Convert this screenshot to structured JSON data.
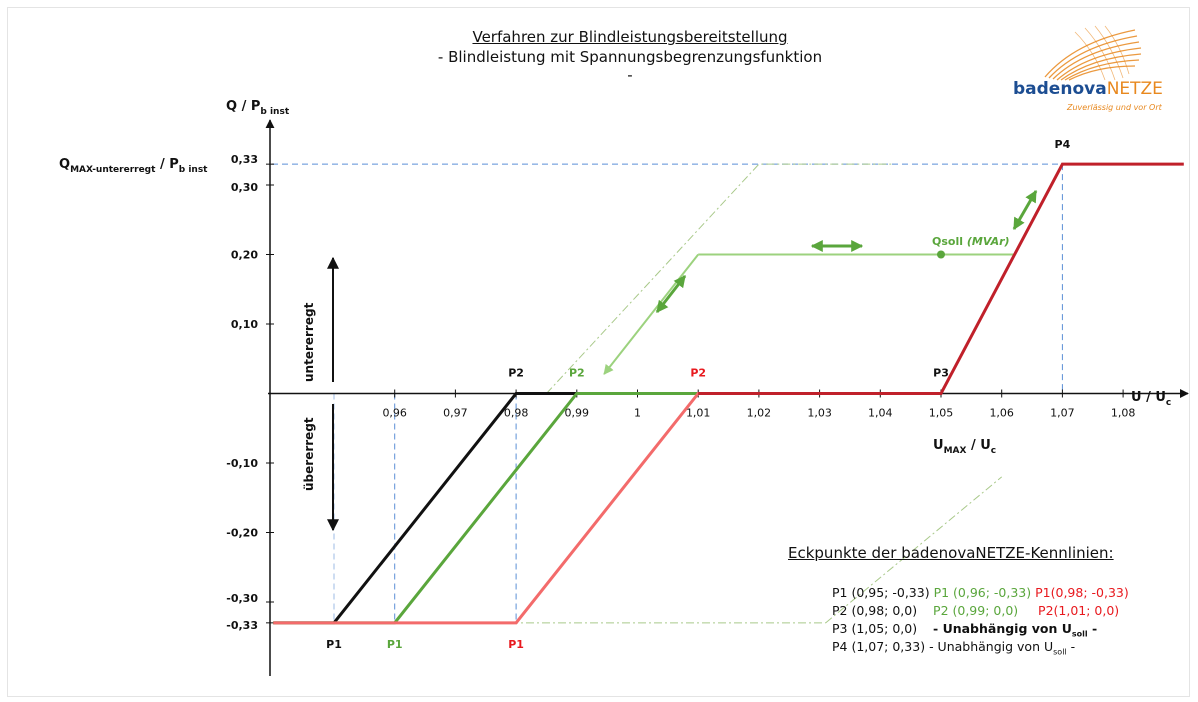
{
  "header": {
    "title_line1": "Verfahren zur Blindleistungsbereitstellung",
    "title_line2": "- Blindleistung mit Spannungsbegrenzungsfunktion",
    "title_line3": "-"
  },
  "logo": {
    "name_part1": "badenova",
    "name_part2": "NETZE",
    "tagline": "Zuverlässig und vor Ort",
    "colors": {
      "blue": "#1c4d92",
      "orange": "#e8881e"
    }
  },
  "legend": {
    "title": "Eckpunkte der badenovaNETZE-Kennlinien:",
    "rows": [
      {
        "a": "P1 (0,95; -0,33)",
        "b": "P1 (0,96; -0,33)",
        "c": "P1(0,98; -0,33)"
      },
      {
        "a": "P2 (0,98; 0,0)",
        "b": "P2 (0,99; 0,0)",
        "c": "P2(1,01; 0,0)"
      },
      {
        "a": "P3 (1,05; 0,0)",
        "b": "- Unabhängig von U",
        "b_sub": "soll",
        "b_tail": " -"
      },
      {
        "a": "P4 (1,07; 0,33)",
        "b": "- Unabhängig von U",
        "b_sub": "soll",
        "b_tail": " -"
      }
    ]
  },
  "chart_data": {
    "type": "line",
    "title": "Verfahren zur Blindleistungsbereitstellung",
    "xlabel": "U / Uc",
    "xlabel_main": "U / U",
    "xlabel_sub": "c",
    "ylabel": "Q / Pb inst",
    "ylabel_main": "Q / P",
    "ylabel_sub": "b inst",
    "ylabel_qmax_main": "Q",
    "ylabel_qmax_sub": "MAX-untererregt",
    "ylabel_qmax_mid": " / P",
    "ylabel_qmax_sub2": "b inst",
    "umax_label_main": "U",
    "umax_label_sub": "MAX",
    "umax_label_tail": " / U",
    "umax_label_sub2": "c",
    "xlim": [
      0.94,
      1.09
    ],
    "ylim": [
      -0.4,
      0.37
    ],
    "x_ticks": [
      {
        "v": 0.96,
        "label": "0,96"
      },
      {
        "v": 0.97,
        "label": "0,97"
      },
      {
        "v": 0.98,
        "label": "0,98"
      },
      {
        "v": 0.99,
        "label": "0,99"
      },
      {
        "v": 1.0,
        "label": "1"
      },
      {
        "v": 1.01,
        "label": "1,01"
      },
      {
        "v": 1.02,
        "label": "1,02"
      },
      {
        "v": 1.03,
        "label": "1,03"
      },
      {
        "v": 1.04,
        "label": "1,04"
      },
      {
        "v": 1.05,
        "label": "1,05"
      },
      {
        "v": 1.06,
        "label": "1,06"
      },
      {
        "v": 1.07,
        "label": "1,07"
      },
      {
        "v": 1.08,
        "label": "1,08"
      }
    ],
    "y_ticks": [
      {
        "v": 0.33,
        "label": "0,33"
      },
      {
        "v": 0.3,
        "label": "0,30"
      },
      {
        "v": 0.2,
        "label": "0,20"
      },
      {
        "v": 0.1,
        "label": "0,10"
      },
      {
        "v": -0.1,
        "label": "-0,10"
      },
      {
        "v": -0.2,
        "label": "-0,20"
      },
      {
        "v": -0.3,
        "label": "-0,30"
      },
      {
        "v": -0.33,
        "label": "-0,33"
      }
    ],
    "series": [
      {
        "color": "#111111",
        "x": [
          0.94,
          0.95,
          0.98,
          1.05
        ],
        "y": [
          -0.33,
          -0.33,
          0.0,
          0.0
        ]
      },
      {
        "color": "#5aa63c",
        "x": [
          0.94,
          0.96,
          0.99,
          1.05
        ],
        "y": [
          -0.33,
          -0.33,
          0.0,
          0.0
        ]
      },
      {
        "color": "#f36b6b",
        "x": [
          0.94,
          0.98,
          1.01,
          1.05
        ],
        "y": [
          -0.33,
          -0.33,
          0.0,
          0.0
        ]
      },
      {
        "color": "#c0202a",
        "x": [
          1.01,
          1.05,
          1.07,
          1.09
        ],
        "y": [
          0.0,
          0.0,
          0.33,
          0.33
        ]
      }
    ],
    "qsoll_series": {
      "color": "#9cd27e",
      "x": [
        0.995,
        1.01,
        1.062
      ],
      "y": [
        0.03,
        0.2,
        0.2
      ]
    },
    "qsoll_point": {
      "x": 1.05,
      "y": 0.2,
      "label": "Qsoll",
      "label_unit": "(MVAr)"
    },
    "dashed_guides_x": [
      0.96,
      0.98,
      1.07
    ],
    "dashed_guides_y": [
      0.33,
      -0.33
    ],
    "dashdot_helper": {
      "x": [
        0.985,
        1.02,
        1.042
      ],
      "y": [
        0.0,
        0.33,
        0.33
      ]
    },
    "dashdot_helper_bottom": {
      "x": [
        0.95,
        1.031
      ],
      "y": [
        -0.33,
        -0.33
      ]
    },
    "point_labels": [
      {
        "text": "P2",
        "x": 0.98,
        "y": 0.0,
        "color": "#111111"
      },
      {
        "text": "P2",
        "x": 0.99,
        "y": 0.0,
        "color": "#5aa63c"
      },
      {
        "text": "P2",
        "x": 1.01,
        "y": 0.0,
        "color": "#e8191e"
      },
      {
        "text": "P3",
        "x": 1.05,
        "y": 0.0,
        "color": "#111111"
      },
      {
        "text": "P4",
        "x": 1.07,
        "y": 0.33,
        "color": "#111111"
      },
      {
        "text": "P1",
        "x": 0.95,
        "y": -0.33,
        "color": "#111111"
      },
      {
        "text": "P1",
        "x": 0.96,
        "y": -0.33,
        "color": "#5aa63c"
      },
      {
        "text": "P1",
        "x": 0.98,
        "y": -0.33,
        "color": "#e8191e"
      }
    ],
    "annotations": {
      "untererregt": "untererregt",
      "uebererregt": "übererregt"
    }
  }
}
